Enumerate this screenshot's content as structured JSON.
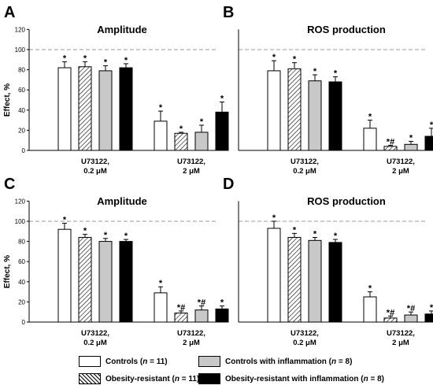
{
  "colors": {
    "controls": "#ffffff",
    "obesity_resistant_pattern": "hatched",
    "inflammation": "#c8c8c8",
    "obesity_inflammation": "#000000",
    "reference_line": "#999999"
  },
  "legend": {
    "items": [
      {
        "pre": "Controls (",
        "n": "n",
        "post": " = 11)",
        "color": "#ffffff",
        "pattern": "none"
      },
      {
        "pre": "Controls with inflammation (",
        "n": "n",
        "post": " = 8)",
        "color": "#c8c8c8",
        "pattern": "none"
      },
      {
        "pre": "Obesity-resistant (",
        "n": "n",
        "post": " = 11)",
        "color": "#ffffff",
        "pattern": "hatch"
      },
      {
        "pre": "Obesity-resistant with inflammation (",
        "n": "n",
        "post": " = 8)",
        "color": "#000000",
        "pattern": "none"
      }
    ]
  },
  "chart_data": [
    {
      "type": "bar",
      "panel_letter": "A",
      "title": "Amplitude",
      "ylabel": "Effect, %",
      "ylim": [
        0,
        120
      ],
      "yticks": [
        0,
        20,
        40,
        60,
        80,
        100,
        120
      ],
      "reference_line": 100,
      "categories": [
        "U73122,\n0.2 μM",
        "U73122,\n2 μM"
      ],
      "series": [
        {
          "name": "Controls (n = 11)",
          "values": [
            82,
            29
          ],
          "errors": [
            6,
            10
          ],
          "marks": [
            "*",
            "*"
          ]
        },
        {
          "name": "Obesity-resistant (n = 11)",
          "values": [
            83,
            17
          ],
          "errors": [
            5,
            1
          ],
          "marks": [
            "*",
            "*"
          ]
        },
        {
          "name": "Controls with inflammation (n = 8)",
          "values": [
            79,
            18
          ],
          "errors": [
            5,
            7
          ],
          "marks": [
            "*",
            "*"
          ]
        },
        {
          "name": "Obesity-resistant with inflammation (n = 8)",
          "values": [
            82,
            38
          ],
          "errors": [
            4,
            10
          ],
          "marks": [
            "*",
            "*"
          ]
        }
      ]
    },
    {
      "type": "bar",
      "panel_letter": "B",
      "title": "ROS production",
      "ylabel": "",
      "ylim": [
        0,
        120
      ],
      "yticks": [],
      "reference_line": 100,
      "categories": [
        "U73122,\n0.2 μM",
        "U73122,\n2 μM"
      ],
      "series": [
        {
          "name": "Controls (n = 11)",
          "values": [
            79,
            22
          ],
          "errors": [
            10,
            8
          ],
          "marks": [
            "*",
            "*"
          ]
        },
        {
          "name": "Obesity-resistant (n = 11)",
          "values": [
            81,
            4
          ],
          "errors": [
            6,
            1
          ],
          "marks": [
            "*",
            "*#"
          ]
        },
        {
          "name": "Controls with inflammation (n = 8)",
          "values": [
            69,
            6
          ],
          "errors": [
            6,
            3
          ],
          "marks": [
            "*",
            "*"
          ]
        },
        {
          "name": "Obesity-resistant with inflammation (n = 8)",
          "values": [
            68,
            14
          ],
          "errors": [
            5,
            8
          ],
          "marks": [
            "*",
            "*"
          ]
        }
      ]
    },
    {
      "type": "bar",
      "panel_letter": "C",
      "title": "Amplitude",
      "ylabel": "Effect, %",
      "ylim": [
        0,
        120
      ],
      "yticks": [
        0,
        20,
        40,
        60,
        80,
        100,
        120
      ],
      "reference_line": 100,
      "categories": [
        "U73122,\n0.2 μM",
        "U73122,\n2 μM"
      ],
      "series": [
        {
          "name": "Controls (n = 11)",
          "values": [
            92,
            29
          ],
          "errors": [
            6,
            6
          ],
          "marks": [
            "*",
            "*"
          ]
        },
        {
          "name": "Obesity-resistant (n = 11)",
          "values": [
            84,
            9
          ],
          "errors": [
            3,
            2
          ],
          "marks": [
            "*",
            "*#"
          ]
        },
        {
          "name": "Controls with inflammation (n = 8)",
          "values": [
            80,
            12
          ],
          "errors": [
            3,
            4
          ],
          "marks": [
            "*",
            "*#"
          ]
        },
        {
          "name": "Obesity-resistant with inflammation (n = 8)",
          "values": [
            80,
            13
          ],
          "errors": [
            2,
            3
          ],
          "marks": [
            "*",
            "*"
          ]
        }
      ]
    },
    {
      "type": "bar",
      "panel_letter": "D",
      "title": "ROS production",
      "ylabel": "",
      "ylim": [
        0,
        120
      ],
      "yticks": [],
      "reference_line": 100,
      "categories": [
        "U73122,\n0.2 μM",
        "U73122,\n2 μM"
      ],
      "series": [
        {
          "name": "Controls (n = 11)",
          "values": [
            93,
            25
          ],
          "errors": [
            7,
            5
          ],
          "marks": [
            "*",
            "*"
          ]
        },
        {
          "name": "Obesity-resistant (n = 11)",
          "values": [
            84,
            4
          ],
          "errors": [
            4,
            2
          ],
          "marks": [
            "*",
            "*#"
          ]
        },
        {
          "name": "Controls with inflammation (n = 8)",
          "values": [
            81,
            7
          ],
          "errors": [
            3,
            3
          ],
          "marks": [
            "*",
            "*#"
          ]
        },
        {
          "name": "Obesity-resistant with inflammation (n = 8)",
          "values": [
            79,
            8
          ],
          "errors": [
            3,
            3
          ],
          "marks": [
            "*",
            "*"
          ]
        }
      ]
    }
  ]
}
